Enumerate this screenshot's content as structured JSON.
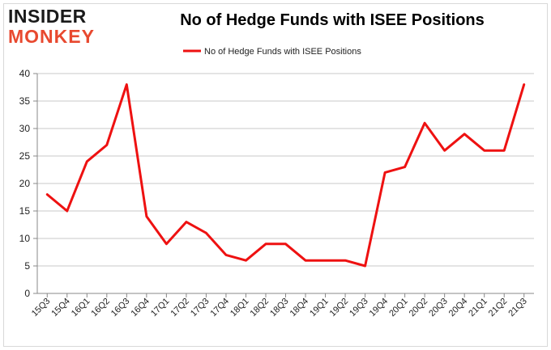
{
  "logo": {
    "line1": "INSIDER",
    "line2": "MONKEY",
    "color_dark": "#1a1a1a",
    "color_accent": "#e8492f"
  },
  "chart_data": {
    "type": "line",
    "title": "No of Hedge Funds with ISEE Positions",
    "xlabel": "",
    "ylabel": "",
    "ylim": [
      0,
      40
    ],
    "yticks": [
      0,
      5,
      10,
      15,
      20,
      25,
      30,
      35,
      40
    ],
    "grid": true,
    "legend_position": "top-center",
    "categories": [
      "15Q3",
      "15Q4",
      "16Q1",
      "16Q2",
      "16Q3",
      "16Q4",
      "17Q1",
      "17Q2",
      "17Q3",
      "17Q4",
      "18Q1",
      "18Q2",
      "18Q3",
      "18Q4",
      "19Q1",
      "19Q2",
      "19Q3",
      "19Q4",
      "20Q1",
      "20Q2",
      "20Q3",
      "20Q4",
      "21Q1",
      "21Q2",
      "21Q3"
    ],
    "series": [
      {
        "name": "No of Hedge Funds with ISEE Positions",
        "color": "#ee1111",
        "values": [
          18,
          15,
          24,
          27,
          38,
          14,
          9,
          13,
          11,
          7,
          6,
          9,
          9,
          6,
          6,
          6,
          5,
          22,
          23,
          31,
          26,
          29,
          26,
          26,
          38
        ]
      }
    ]
  }
}
